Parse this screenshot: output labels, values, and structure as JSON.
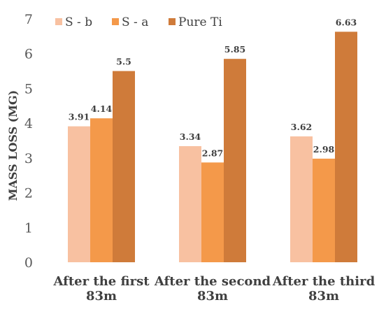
{
  "chart_data": {
    "type": "bar",
    "title": "",
    "xlabel": "",
    "ylabel": "MASS LOSS (MG)",
    "ylim": [
      0,
      7
    ],
    "yticks": [
      "0",
      "1",
      "2",
      "3",
      "4",
      "5",
      "6",
      "7"
    ],
    "grid": false,
    "legend_position": "top-left",
    "categories": [
      [
        "After the first",
        "83m"
      ],
      [
        "After the second",
        "83m"
      ],
      [
        "After the third",
        "83m"
      ]
    ],
    "series": [
      {
        "name": "S - b",
        "color": "#F8C1A1",
        "values": [
          3.91,
          3.34,
          3.62
        ],
        "labels": [
          "3.91",
          "3.34",
          "3.62"
        ]
      },
      {
        "name": "S - a",
        "color": "#F4994A",
        "values": [
          4.14,
          2.87,
          2.98
        ],
        "labels": [
          "4.14",
          "2.87",
          "2.98"
        ]
      },
      {
        "name": "Pure Ti",
        "color": "#CF7B3A",
        "values": [
          5.5,
          5.85,
          6.63
        ],
        "labels": [
          "5.5",
          "5.85",
          "6.63"
        ]
      }
    ]
  }
}
